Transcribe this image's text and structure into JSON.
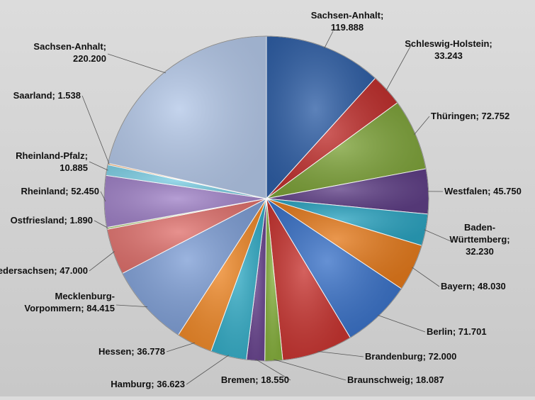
{
  "chart_data": {
    "type": "pie",
    "title": "",
    "separator": "; ",
    "start_angle_deg": 0,
    "direction": "clockwise",
    "slices": [
      {
        "label": "Sachsen-Anhalt",
        "value_text": "119.888",
        "value": 119888,
        "color": "#2f5fa6"
      },
      {
        "label": "Schleswig-Holstein",
        "value_text": "33.243",
        "value": 33243,
        "color": "#c0302e"
      },
      {
        "label": "Thüringen",
        "value_text": "72.752",
        "value": 72752,
        "color": "#7ea33a"
      },
      {
        "label": "Westfalen",
        "value_text": "45.750",
        "value": 45750,
        "color": "#5f3f86"
      },
      {
        "label": "Baden-Württemberg",
        "value_text": "32.230",
        "value": 32230,
        "color": "#2ba3c0"
      },
      {
        "label": "Bayern",
        "value_text": "48.030",
        "value": 48030,
        "color": "#e47a1c"
      },
      {
        "label": "Berlin",
        "value_text": "71.701",
        "value": 71701,
        "color": "#3a72c8"
      },
      {
        "label": "Brandenburg",
        "value_text": "72.000",
        "value": 72000,
        "color": "#c83531"
      },
      {
        "label": "Braunschweig",
        "value_text": "18.087",
        "value": 18087,
        "color": "#86b03d"
      },
      {
        "label": "Bremen",
        "value_text": "18.550",
        "value": 18550,
        "color": "#6a4690"
      },
      {
        "label": "Hamburg",
        "value_text": "36.623",
        "value": 36623,
        "color": "#36aec8"
      },
      {
        "label": "Hessen",
        "value_text": "36.778",
        "value": 36778,
        "color": "#f08a2a"
      },
      {
        "label": "Mecklenburg-Vorpommern",
        "value_text": "84.415",
        "value": 84415,
        "color": "#7f9fd6"
      },
      {
        "label": "Niedersachsen",
        "value_text": "47.000",
        "value": 47000,
        "color": "#e0726e"
      },
      {
        "label": "Ostfriesland",
        "value_text": "1.890",
        "value": 1890,
        "color": "#b0cf78"
      },
      {
        "label": "Rheinland",
        "value_text": "52.450",
        "value": 52450,
        "color": "#a183c8"
      },
      {
        "label": "Rheinland-Pfalz",
        "value_text": "10.885",
        "value": 10885,
        "color": "#7fd0e6"
      },
      {
        "label": "Saarland",
        "value_text": "1.538",
        "value": 1538,
        "color": "#f6b06e"
      },
      {
        "label": "Sachsen-Anhalt",
        "value_text": "220.200",
        "value": 220200,
        "color": "#b4c8e8"
      }
    ]
  }
}
